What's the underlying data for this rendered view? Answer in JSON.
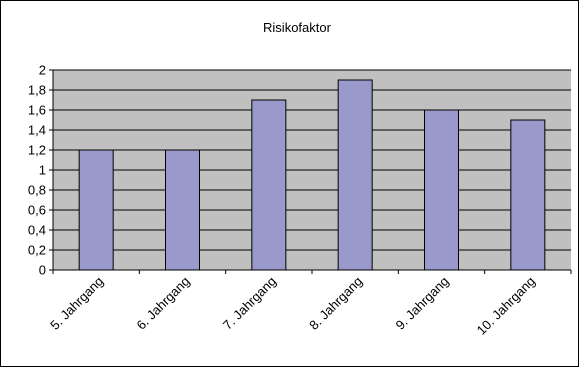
{
  "chart_data": {
    "type": "bar",
    "title": "Risikofaktor",
    "xlabel": "",
    "ylabel": "",
    "categories": [
      "5. Jahrgang",
      "6. Jahrgang",
      "7. Jahrgang",
      "8. Jahrgang",
      "9. Jahrgang",
      "10. Jahrgang"
    ],
    "values": [
      1.2,
      1.2,
      1.7,
      1.9,
      1.6,
      1.5
    ],
    "ylim": [
      0,
      2
    ],
    "yticks": [
      "0",
      "0,2",
      "0,4",
      "0,6",
      "0,8",
      "1",
      "1,2",
      "1,4",
      "1,6",
      "1,8",
      "2"
    ],
    "grid": true,
    "legend": "none",
    "colors": {
      "bar_fill": "#9999cc",
      "bar_stroke": "#000000",
      "plot_background": "#c0c0c0",
      "gridline": "#000000",
      "chart_background": "#ffffff",
      "border": "#000000"
    }
  }
}
